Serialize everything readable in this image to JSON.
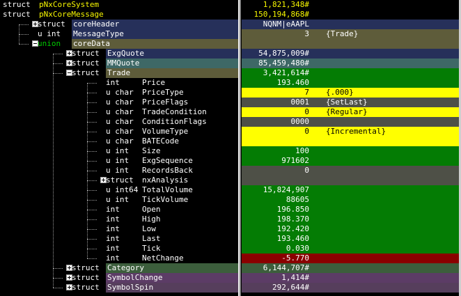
{
  "colors": {
    "header_bg": "#000000",
    "blue_bg": "#26305a",
    "olive_bg": "#5e5c3a",
    "teal_bg": "#3e6866",
    "green_bg": "#047c04",
    "yellow_bg": "#ffff00",
    "gray_bg": "#4e5047",
    "red_bg": "#8a0000",
    "darkgreen_bg": "#3c5e3c",
    "purple_bg": "#5c3c66",
    "purple2_bg": "#563e5c",
    "yellow_text": "#f7f700",
    "tree_type_text": "#00c800"
  },
  "rows": [
    {
      "name": "pNxCoreSystem",
      "type": "struct",
      "value": "1,821,348#",
      "extra": "",
      "indent": 0,
      "toggle": "none"
    },
    {
      "name": "pNxCoreMessage",
      "type": "struct",
      "value": "150,194,868#",
      "extra": "",
      "indent": 0,
      "toggle": "none"
    },
    {
      "name": "coreHeader",
      "type": "struct",
      "value": "NQNM|eAAPL",
      "extra": "",
      "indent": 1,
      "toggle": "plus"
    },
    {
      "name": "MessageType",
      "type": "u int",
      "value": "3",
      "extra": "{Trade}",
      "indent": 1,
      "toggle": "none"
    },
    {
      "name": "coreData",
      "type": "union",
      "value": "",
      "extra": "",
      "indent": 1,
      "toggle": "minus"
    },
    {
      "name": "ExgQuote",
      "type": "struct",
      "value": "54,875,009#",
      "extra": "",
      "indent": 2,
      "toggle": "plus"
    },
    {
      "name": "MMQuote",
      "type": "struct",
      "value": "85,459,480#",
      "extra": "",
      "indent": 2,
      "toggle": "plus"
    },
    {
      "name": "Trade",
      "type": "struct",
      "value": "3,421,614#",
      "extra": "",
      "indent": 2,
      "toggle": "minus"
    },
    {
      "name": "Price",
      "type": "int",
      "value": "193.460",
      "extra": "",
      "indent": 3,
      "toggle": "none"
    },
    {
      "name": "PriceType",
      "type": "u char",
      "value": "7",
      "extra": "{.000}",
      "indent": 3,
      "toggle": "none"
    },
    {
      "name": "PriceFlags",
      "type": "u char",
      "value": "0001",
      "extra": "{SetLast}",
      "indent": 3,
      "toggle": "none"
    },
    {
      "name": "TradeCondition",
      "type": "u char",
      "value": "0",
      "extra": "{Regular}",
      "indent": 3,
      "toggle": "none"
    },
    {
      "name": "ConditionFlags",
      "type": "u char",
      "value": "0000",
      "extra": "",
      "indent": 3,
      "toggle": "none"
    },
    {
      "name": "VolumeType",
      "type": "u char",
      "value": "0",
      "extra": "{Incremental}",
      "indent": 3,
      "toggle": "none"
    },
    {
      "name": "BATECode",
      "type": "u char",
      "value": "",
      "extra": "",
      "indent": 3,
      "toggle": "none"
    },
    {
      "name": "Size",
      "type": "u int",
      "value": "100",
      "extra": "",
      "indent": 3,
      "toggle": "none"
    },
    {
      "name": "ExgSequence",
      "type": "u int",
      "value": "971602",
      "extra": "",
      "indent": 3,
      "toggle": "none"
    },
    {
      "name": "RecordsBack",
      "type": "u int",
      "value": "0",
      "extra": "",
      "indent": 3,
      "toggle": "none"
    },
    {
      "name": "nxAnalysis",
      "type": "struct",
      "value": "",
      "extra": "",
      "indent": 3,
      "toggle": "plus"
    },
    {
      "name": "TotalVolume",
      "type": "u int64",
      "value": "15,824,907",
      "extra": "",
      "indent": 3,
      "toggle": "none"
    },
    {
      "name": "TickVolume",
      "type": "u int",
      "value": "88605",
      "extra": "",
      "indent": 3,
      "toggle": "none"
    },
    {
      "name": "Open",
      "type": "int",
      "value": "196.850",
      "extra": "",
      "indent": 3,
      "toggle": "none"
    },
    {
      "name": "High",
      "type": "int",
      "value": "198.370",
      "extra": "",
      "indent": 3,
      "toggle": "none"
    },
    {
      "name": "Low",
      "type": "int",
      "value": "192.420",
      "extra": "",
      "indent": 3,
      "toggle": "none"
    },
    {
      "name": "Last",
      "type": "int",
      "value": "193.460",
      "extra": "",
      "indent": 3,
      "toggle": "none"
    },
    {
      "name": "Tick",
      "type": "int",
      "value": "0.030",
      "extra": "",
      "indent": 3,
      "toggle": "none"
    },
    {
      "name": "NetChange",
      "type": "int",
      "value": "-5.770",
      "extra": "",
      "indent": 3,
      "toggle": "none"
    },
    {
      "name": "Category",
      "type": "struct",
      "value": "6,144,707#",
      "extra": "",
      "indent": 2,
      "toggle": "plus"
    },
    {
      "name": "SymbolChange",
      "type": "struct",
      "value": "1,414#",
      "extra": "",
      "indent": 2,
      "toggle": "plus"
    },
    {
      "name": "SymbolSpin",
      "type": "struct",
      "value": "292,644#",
      "extra": "",
      "indent": 2,
      "toggle": "plus"
    }
  ]
}
